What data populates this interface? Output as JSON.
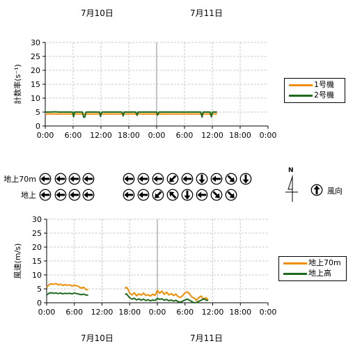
{
  "colors": {
    "unit1": "#f08c00",
    "unit2": "#1e6b1e",
    "wind70": "#f08c00",
    "windGround": "#1e6b1e",
    "grid": "#c8c8c8"
  },
  "top_dates": [
    "7月10日",
    "7月11日"
  ],
  "bottom_dates": [
    "7月10日",
    "7月11日"
  ],
  "chart_data": [
    {
      "type": "line",
      "ylabel": "計数率(s⁻¹)",
      "xlabel": "",
      "ylim": [
        0,
        30
      ],
      "yticks": [
        "0",
        "5",
        "10",
        "15",
        "20",
        "25",
        "30"
      ],
      "xticks": [
        "0:00",
        "6:00",
        "12:00",
        "18:00",
        "0:00",
        "6:00",
        "12:00",
        "18:00",
        "0:00"
      ],
      "x_unit": "hours since 7月10日 0:00",
      "grid": true,
      "legend": "right",
      "series": [
        {
          "name": "1号機",
          "color": "#f08c00",
          "x": [
            0,
            2,
            4,
            6,
            8,
            10,
            12,
            14,
            16,
            18,
            20,
            22,
            24,
            26,
            28,
            30,
            32,
            34,
            36,
            37
          ],
          "values": [
            4.3,
            4.3,
            4.3,
            4.3,
            4.3,
            4.3,
            4.3,
            4.3,
            4.3,
            4.3,
            4.3,
            4.3,
            4.3,
            4.3,
            4.3,
            4.3,
            4.3,
            4.3,
            4.3,
            4.3
          ]
        },
        {
          "name": "2号機",
          "color": "#1e6b1e",
          "x": [
            0,
            1,
            2,
            3,
            4,
            5,
            5.9,
            6.1,
            6.3,
            7,
            8,
            8.3,
            8.5,
            8.8,
            9,
            10,
            11,
            11.7,
            11.9,
            12.2,
            13,
            14,
            15,
            16,
            16.5,
            16.8,
            17,
            18,
            19,
            19.5,
            19.8,
            20,
            21,
            22,
            23,
            24,
            24.2,
            24.5,
            25,
            26,
            27,
            28,
            29,
            30,
            31,
            32,
            33,
            33.5,
            33.8,
            34,
            35,
            35.5,
            35.8,
            36,
            37
          ],
          "values": [
            5.0,
            5.0,
            5.1,
            5.0,
            5.0,
            5.0,
            5.0,
            3.3,
            5.0,
            5.0,
            5.0,
            3.1,
            3.2,
            5.0,
            5.0,
            5.0,
            5.0,
            5.0,
            3.4,
            5.0,
            5.0,
            5.0,
            5.0,
            5.0,
            5.0,
            3.6,
            5.0,
            5.0,
            5.0,
            5.0,
            3.8,
            5.0,
            5.0,
            5.0,
            5.0,
            5.0,
            3.9,
            5.0,
            5.0,
            5.0,
            5.0,
            5.0,
            5.0,
            5.0,
            5.0,
            5.0,
            5.0,
            5.0,
            3.2,
            5.0,
            5.0,
            5.0,
            3.3,
            5.0,
            5.0
          ]
        }
      ]
    },
    {
      "type": "line",
      "ylabel": "風速(m/s)",
      "xlabel": "",
      "ylim": [
        0,
        30
      ],
      "yticks": [
        "0",
        "5",
        "10",
        "15",
        "20",
        "25",
        "30"
      ],
      "xticks": [
        "0:00",
        "6:00",
        "12:00",
        "18:00",
        "0:00",
        "6:00",
        "12:00",
        "18:00",
        "0:00"
      ],
      "x_unit": "hours since 7月10日 0:00",
      "grid": true,
      "legend": "right",
      "series": [
        {
          "name": "地上70m",
          "color": "#f08c00",
          "segments": [
            {
              "x": [
                0,
                0.5,
                1,
                1.5,
                2,
                2.5,
                3,
                3.5,
                4,
                4.5,
                5,
                5.5,
                6,
                6.5,
                7,
                7.5,
                8,
                8.5,
                9
              ],
              "values": [
                5.5,
                6.5,
                6.8,
                6.6,
                6.9,
                6.4,
                6.7,
                6.2,
                6.5,
                6.3,
                6.4,
                6.0,
                6.3,
                6.1,
                5.8,
                5.2,
                5.6,
                4.8,
                4.6
              ]
            },
            {
              "x": [
                17,
                17.3,
                17.6,
                18,
                18.5,
                19,
                19.5,
                20,
                20.5,
                21,
                21.5,
                22,
                22.5,
                23,
                23.5,
                24,
                24.5,
                25,
                25.5,
                26,
                26.5,
                27,
                27.5,
                28,
                28.5,
                29,
                29.5,
                30,
                30.5,
                31,
                31.5,
                32,
                32.5,
                33,
                33.5,
                34,
                34.5,
                35
              ],
              "values": [
                5.2,
                5.6,
                4.9,
                3.4,
                2.8,
                3.6,
                2.5,
                3.2,
                2.7,
                3.5,
                2.6,
                2.9,
                2.4,
                3.1,
                2.6,
                4.5,
                3.4,
                4.2,
                3.0,
                3.8,
                2.8,
                3.3,
                2.6,
                3.1,
                2.2,
                1.9,
                2.6,
                3.6,
                3.9,
                3.1,
                2.0,
                1.7,
                0.8,
                1.9,
                2.4,
                1.3,
                1.8,
                1.1
              ]
            }
          ]
        },
        {
          "name": "地上高",
          "color": "#1e6b1e",
          "segments": [
            {
              "x": [
                0,
                0.5,
                1,
                1.5,
                2,
                2.5,
                3,
                3.5,
                4,
                4.5,
                5,
                5.5,
                6,
                6.5,
                7,
                7.5,
                8,
                8.5,
                9
              ],
              "values": [
                2.8,
                3.4,
                3.6,
                3.4,
                3.5,
                3.3,
                3.5,
                3.2,
                3.4,
                3.3,
                3.4,
                3.2,
                3.5,
                3.3,
                3.1,
                2.9,
                3.1,
                2.8,
                2.7
              ]
            },
            {
              "x": [
                17,
                17.3,
                17.6,
                18,
                18.5,
                19,
                19.5,
                20,
                20.5,
                21,
                21.5,
                22,
                22.5,
                23,
                23.5,
                24,
                24.5,
                25,
                25.5,
                26,
                26.5,
                27,
                27.5,
                28,
                28.5,
                29,
                29.5,
                30,
                30.5,
                31,
                31.5,
                32,
                32.5,
                33,
                33.5,
                34,
                34.5,
                35
              ],
              "values": [
                3.0,
                3.2,
                2.6,
                1.8,
                1.3,
                1.6,
                1.0,
                1.4,
                0.9,
                1.3,
                0.8,
                1.1,
                0.7,
                1.0,
                0.8,
                1.6,
                1.2,
                1.4,
                0.9,
                1.2,
                0.7,
                1.0,
                0.6,
                0.9,
                0.4,
                0.2,
                0.6,
                1.0,
                1.3,
                0.9,
                0.4,
                0.0,
                0.1,
                0.5,
                0.9,
                1.4,
                1.0,
                0.8
              ]
            }
          ]
        }
      ]
    }
  ],
  "wind": {
    "rows": [
      {
        "label": "地上70m",
        "day1": [
          "w",
          "w",
          "w",
          "w"
        ],
        "day2": [
          "w",
          "w",
          "w",
          "sw",
          "w",
          "s",
          "w",
          "se",
          "s"
        ]
      },
      {
        "label": "地上",
        "day1": [
          "w",
          "w",
          "w",
          "w"
        ],
        "day2": [
          "w",
          "w",
          "sw",
          "nw",
          "s",
          "w",
          "se",
          "se"
        ]
      }
    ],
    "legend_label": "風向",
    "legend_icon": "n",
    "north_label": "N"
  }
}
